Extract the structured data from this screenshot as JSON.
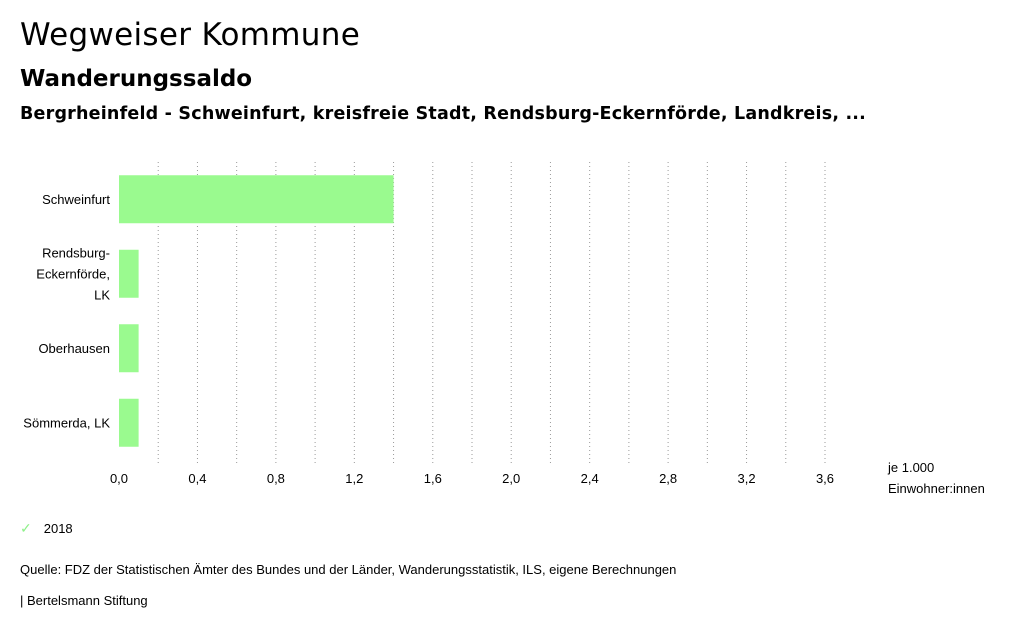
{
  "header": {
    "title": "Wegweiser Kommune",
    "subtitle": "Wanderungssaldo",
    "regions": "Bergrheinfeld - Schweinfurt, kreisfreie Stadt, Rendsburg-Eckernförde, Landkreis, ..."
  },
  "chart_data": {
    "type": "bar",
    "orientation": "horizontal",
    "categories": [
      [
        "Schweinfurt"
      ],
      [
        "Rendsburg-",
        "Eckernförde,",
        "LK"
      ],
      [
        "Oberhausen"
      ],
      [
        "Sömmerda, LK"
      ]
    ],
    "series": [
      {
        "name": "2018",
        "values": [
          1.4,
          0.1,
          0.1,
          0.1
        ],
        "color": "#9afa8f"
      }
    ],
    "xlim": [
      0,
      3.6
    ],
    "xticks": [
      "0,0",
      "0,4",
      "0,8",
      "1,2",
      "1,6",
      "2,0",
      "2,4",
      "2,8",
      "3,2",
      "3,6"
    ],
    "xtick_values": [
      0,
      0.4,
      0.8,
      1.2,
      1.6,
      2.0,
      2.4,
      2.8,
      3.2,
      3.6
    ],
    "unit_label": [
      "je 1.000",
      "Einwohner:innen"
    ],
    "grid": "vertical-dotted",
    "legend_position": "bottom-left"
  },
  "legend": {
    "label": "2018",
    "icon": "check-icon",
    "color": "#8ff08a"
  },
  "source": "Quelle: FDZ der Statistischen Ämter des Bundes und der Länder, Wanderungsstatistik, ILS, eigene Berechnungen",
  "footer": "| Bertelsmann Stiftung"
}
